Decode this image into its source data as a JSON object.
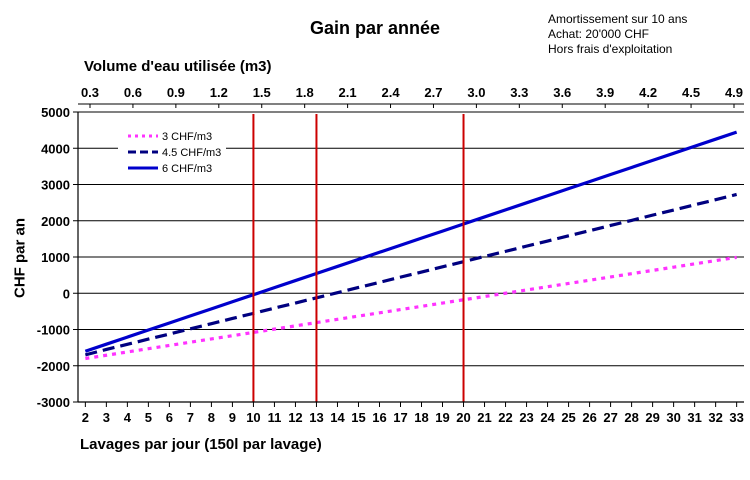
{
  "chart_data": {
    "type": "line",
    "title": "Gain par année",
    "notes": [
      "Amortissement sur 10 ans",
      "Achat: 20'000 CHF",
      "Hors frais d'exploitation"
    ],
    "xlabel": "Lavages par jour (150l par lavage)",
    "x2label": "Volume d'eau utilisée (m3)",
    "ylabel": "CHF par an",
    "x": [
      2,
      3,
      4,
      5,
      6,
      7,
      8,
      9,
      10,
      11,
      12,
      13,
      14,
      15,
      16,
      17,
      18,
      19,
      20,
      21,
      22,
      23,
      24,
      25,
      26,
      27,
      28,
      29,
      30,
      31,
      32,
      33
    ],
    "x2_ticks": [
      "0.3",
      "0.6",
      "0.9",
      "1.2",
      "1.5",
      "1.8",
      "2.1",
      "2.4",
      "2.7",
      "3.0",
      "3.3",
      "3.6",
      "3.9",
      "4.2",
      "4.5",
      "4.9"
    ],
    "ylim": [
      -3000,
      5000
    ],
    "yticks": [
      -3000,
      -2000,
      -1000,
      0,
      1000,
      2000,
      3000,
      4000,
      5000
    ],
    "grid": "horizontal",
    "legend_position": "top-left",
    "series": [
      {
        "name": "3 CHF/m3",
        "color": "#ff33ff",
        "style": "dotted",
        "values": [
          -1800,
          -1710,
          -1620,
          -1530,
          -1440,
          -1350,
          -1260,
          -1170,
          -1080,
          -990,
          -900,
          -810,
          -720,
          -630,
          -540,
          -450,
          -360,
          -270,
          -180,
          -90,
          0,
          90,
          180,
          270,
          360,
          450,
          540,
          630,
          720,
          810,
          900,
          990
        ]
      },
      {
        "name": "4.5 CHF/m3",
        "color": "#000080",
        "style": "dashed",
        "values": [
          -1700,
          -1550,
          -1410,
          -1265,
          -1125,
          -980,
          -840,
          -695,
          -555,
          -410,
          -270,
          -125,
          15,
          160,
          300,
          445,
          585,
          730,
          870,
          1015,
          1155,
          1300,
          1440,
          1585,
          1725,
          1870,
          2010,
          2155,
          2295,
          2440,
          2580,
          2725
        ]
      },
      {
        "name": "6 CHF/m3",
        "color": "#0000cc",
        "style": "solid",
        "values": [
          -1600,
          -1405,
          -1210,
          -1015,
          -820,
          -625,
          -430,
          -235,
          -40,
          155,
          350,
          545,
          740,
          935,
          1130,
          1325,
          1520,
          1715,
          1910,
          2105,
          2300,
          2495,
          2690,
          2885,
          3080,
          3275,
          3470,
          3665,
          3860,
          4055,
          4250,
          4445
        ]
      }
    ],
    "annotations": {
      "vertical_lines_x": [
        10,
        13,
        20
      ],
      "vertical_line_color": "#cc0000"
    }
  }
}
